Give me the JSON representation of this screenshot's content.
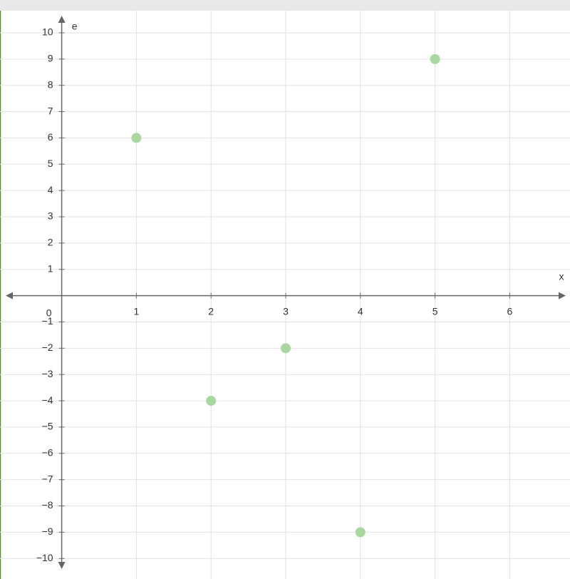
{
  "chart_data": {
    "type": "scatter",
    "x_label": "x",
    "y_label": "e",
    "x": [
      1,
      2,
      3,
      4,
      5
    ],
    "values": [
      6,
      -4,
      -2,
      -9,
      9
    ],
    "color": "#a8d8a0",
    "xlim": [
      -0.75,
      6.75
    ],
    "ylim": [
      -10.4,
      10.65
    ],
    "xticks": [
      1,
      2,
      3,
      4,
      5,
      6
    ],
    "yticks": [
      {
        "value": -10,
        "label": "−10"
      },
      {
        "value": -9,
        "label": "−9"
      },
      {
        "value": -8,
        "label": "−8"
      },
      {
        "value": -7,
        "label": "−7"
      },
      {
        "value": -6,
        "label": "−6"
      },
      {
        "value": -5,
        "label": "−5"
      },
      {
        "value": -4,
        "label": "−4"
      },
      {
        "value": -3,
        "label": "−3"
      },
      {
        "value": -2,
        "label": "−2"
      },
      {
        "value": -1,
        "label": "−1"
      },
      0,
      1,
      2,
      3,
      4,
      5,
      6,
      7,
      8,
      9,
      10
    ],
    "grid": true
  }
}
